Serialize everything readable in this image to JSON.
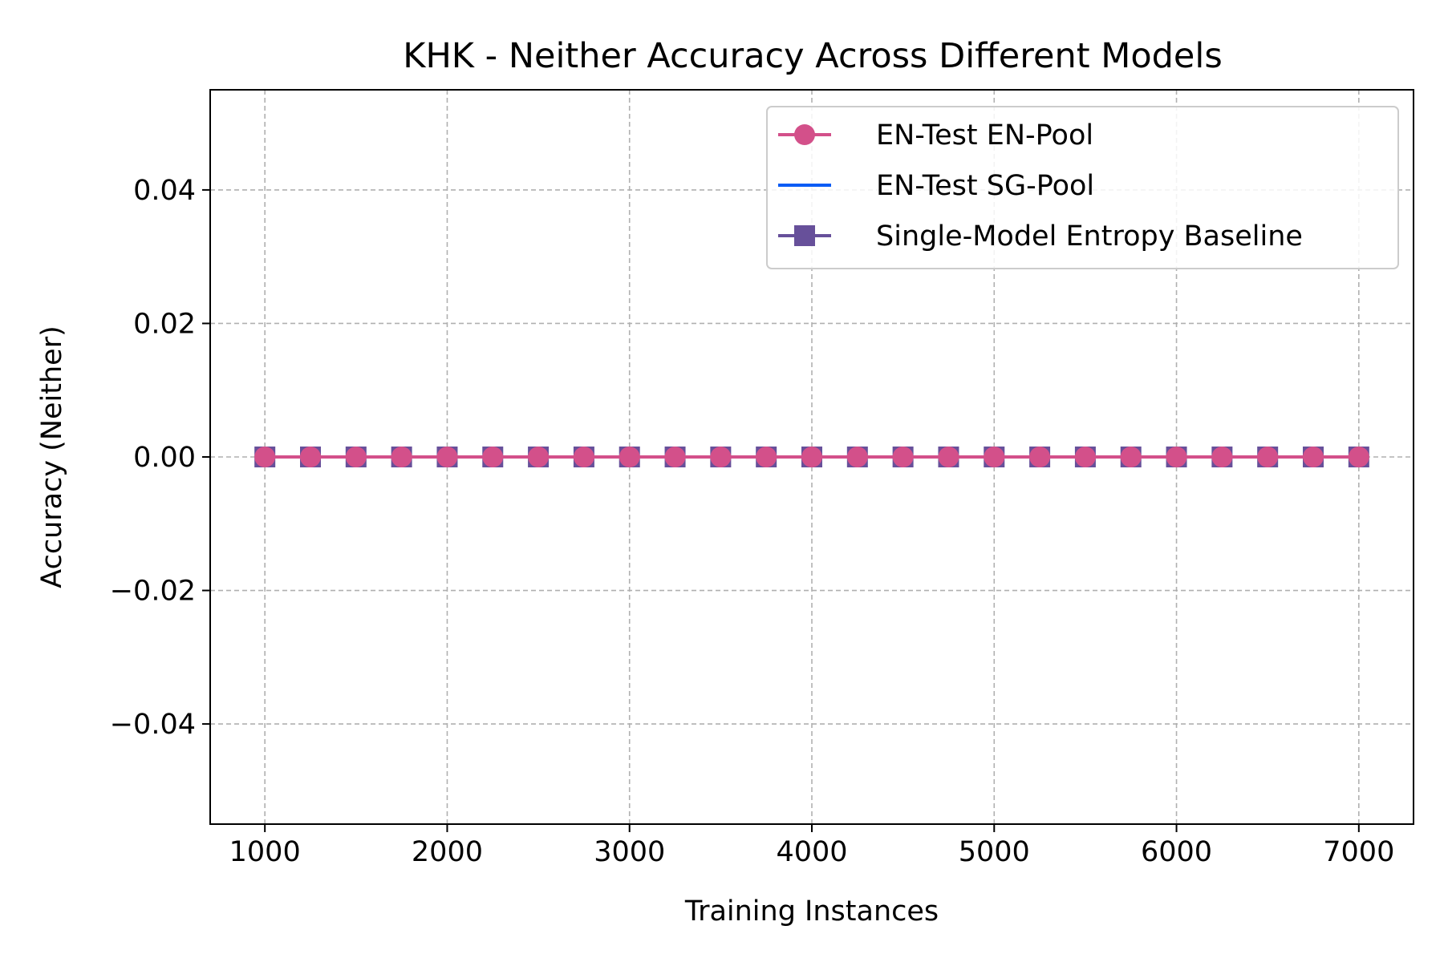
{
  "chart_data": {
    "type": "line",
    "title": "KHK - Neither Accuracy Across Different Models",
    "xlabel": "Training Instances",
    "ylabel": "Accuracy (Neither)",
    "xlim": [
      700,
      7300
    ],
    "ylim": [
      -0.055,
      0.055
    ],
    "xticks": [
      1000,
      2000,
      3000,
      4000,
      5000,
      6000,
      7000
    ],
    "xtick_labels": [
      "1000",
      "2000",
      "3000",
      "4000",
      "5000",
      "6000",
      "7000"
    ],
    "yticks": [
      -0.04,
      -0.02,
      0.0,
      0.02,
      0.04
    ],
    "ytick_labels": [
      "−0.04",
      "−0.02",
      "0.00",
      "0.02",
      "0.04"
    ],
    "grid": true,
    "legend_position": "top-right",
    "x": [
      1000,
      1250,
      1500,
      1750,
      2000,
      2250,
      2500,
      2750,
      3000,
      3250,
      3500,
      3750,
      4000,
      4250,
      4500,
      4750,
      5000,
      5250,
      5500,
      5750,
      6000,
      6250,
      6500,
      6750,
      7000
    ],
    "series": [
      {
        "name": "Single-Model Entropy Baseline",
        "color": "#67509a",
        "marker": "square",
        "values": [
          0,
          0,
          0,
          0,
          0,
          0,
          0,
          0,
          0,
          0,
          0,
          0,
          0,
          0,
          0,
          0,
          0,
          0,
          0,
          0,
          0,
          0,
          0,
          0,
          0
        ]
      },
      {
        "name": "EN-Test SG-Pool",
        "color": "#0b5cf5",
        "marker": "none",
        "values": [
          0,
          0,
          0,
          0,
          0,
          0,
          0,
          0,
          0,
          0,
          0,
          0,
          0,
          0,
          0,
          0,
          0,
          0,
          0,
          0,
          0,
          0,
          0,
          0,
          0
        ]
      },
      {
        "name": "EN-Test EN-Pool",
        "color": "#d3508a",
        "marker": "circle",
        "values": [
          0,
          0,
          0,
          0,
          0,
          0,
          0,
          0,
          0,
          0,
          0,
          0,
          0,
          0,
          0,
          0,
          0,
          0,
          0,
          0,
          0,
          0,
          0,
          0,
          0
        ]
      }
    ],
    "legend_order": [
      "EN-Test EN-Pool",
      "EN-Test SG-Pool",
      "Single-Model Entropy Baseline"
    ]
  }
}
